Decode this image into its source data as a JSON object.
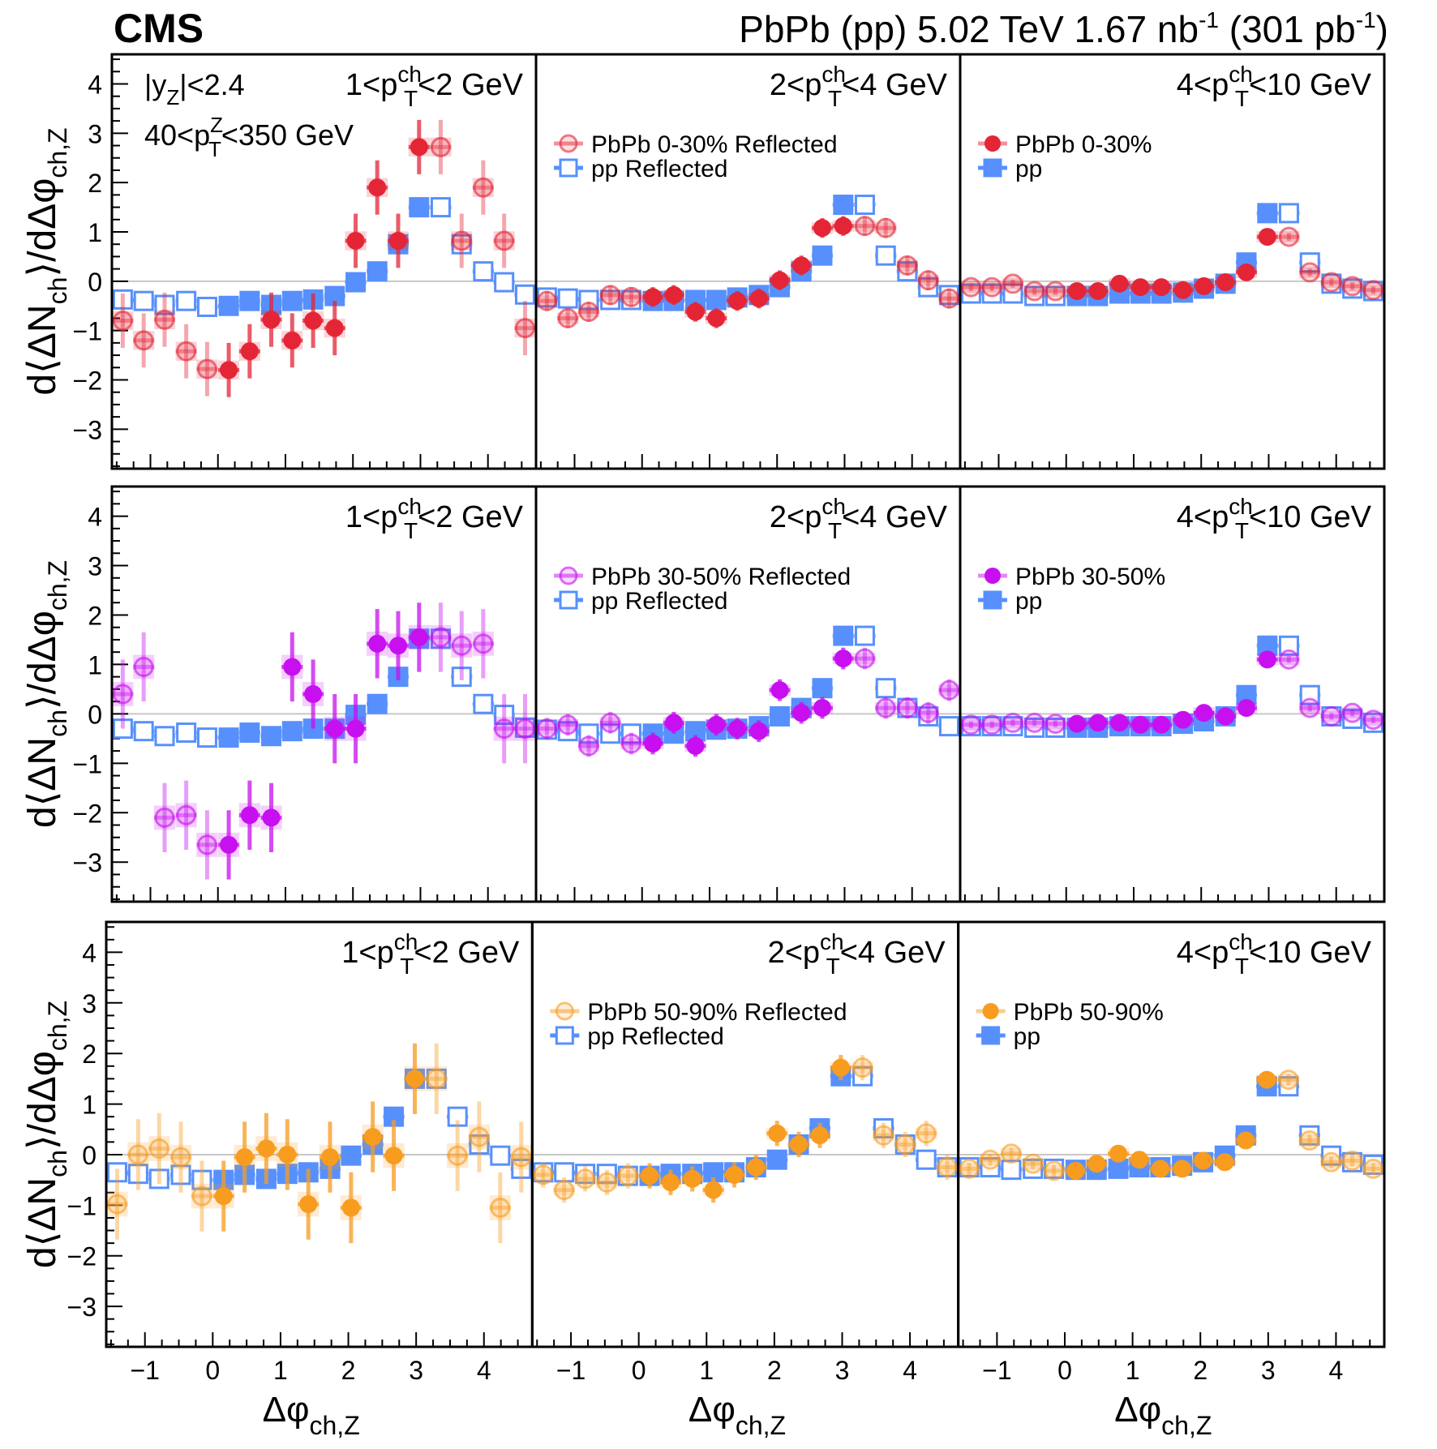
{
  "header": {
    "experiment": "CMS",
    "lumi_main": "PbPb (pp) 5.02 TeV 1.67 nb",
    "lumi_sup1": "-1",
    "lumi_mid": " (301 pb",
    "lumi_sup2": "-1",
    "lumi_end": ")"
  },
  "annotations": {
    "rapidity_cut": {
      "main": "|y",
      "sub": "Z",
      "end": "|<2.4"
    },
    "zpt_cut": {
      "pre": "40<p",
      "sup": "Z",
      "sub": "T",
      "post": "<350 GeV"
    }
  },
  "axis_labels": {
    "x": {
      "main": "Δφ",
      "sub": "ch,Z"
    },
    "y": {
      "pre": "d⟨ΔN",
      "sub1": "ch",
      "mid": "⟩/dΔφ",
      "sub2": "ch,Z"
    }
  },
  "colors": {
    "pp": "#5790fc",
    "pbpb_0_30": "#e42536",
    "pbpb_30_50": "#c80ff0",
    "pbpb_50_90": "#f89c20"
  },
  "chart_data": {
    "type": "scatter",
    "title": "CMS PbPb (pp) 5.02 TeV 1.67 nb^-1 (301 pb^-1)",
    "xlabel": "Δφ_ch,Z",
    "ylabel": "d⟨ΔN_ch⟩/dΔφ_ch,Z",
    "xlim": [
      -1.5708,
      4.7124
    ],
    "ylim": [
      -3.8,
      4.6
    ],
    "xticks": [
      -1,
      0,
      1,
      2,
      3,
      4
    ],
    "yticks": [
      -3,
      -2,
      -1,
      0,
      1,
      2,
      3,
      4
    ],
    "grid": false,
    "x": [
      -1.41,
      -1.1,
      -0.79,
      -0.47,
      -0.16,
      0.16,
      0.47,
      0.79,
      1.1,
      1.41,
      1.73,
      2.04,
      2.36,
      2.67,
      2.98,
      3.3,
      3.61,
      3.93,
      4.24,
      4.55
    ],
    "filled_range": [
      0,
      3.1416
    ],
    "pt_bins": [
      {
        "pre": "1<p",
        "sup": "ch",
        "sub": "T",
        "post": "<2 GeV"
      },
      {
        "pre": "2<p",
        "sup": "ch",
        "sub": "T",
        "post": "<4 GeV"
      },
      {
        "pre": "4<p",
        "sup": "ch",
        "sub": "T",
        "post": "<10 GeV"
      }
    ],
    "rows": [
      {
        "centrality": "0-30%",
        "color_key": "pbpb_0_30",
        "legend_reflected": [
          "PbPb 0-30% Reflected",
          "pp Reflected"
        ],
        "legend_direct": [
          "PbPb 0-30%",
          "pp"
        ],
        "panels": [
          {
            "pbpb": [
              -0.8,
              -1.2,
              -0.78,
              -1.42,
              -1.78,
              -1.8,
              -1.42,
              -0.78,
              -1.2,
              -0.8,
              -0.95,
              0.82,
              1.9,
              0.82,
              2.72,
              2.72,
              0.82,
              1.9,
              0.82,
              -0.95
            ],
            "pbpb_err": [
              0.55,
              0.55,
              0.55,
              0.55,
              0.55,
              0.55,
              0.55,
              0.55,
              0.55,
              0.55,
              0.55,
              0.55,
              0.55,
              0.55,
              0.55,
              0.55,
              0.55,
              0.55,
              0.55,
              0.55
            ],
            "pp": [
              -0.37,
              -0.4,
              -0.48,
              -0.4,
              -0.52,
              -0.5,
              -0.4,
              -0.48,
              -0.4,
              -0.37,
              -0.3,
              -0.02,
              0.2,
              0.75,
              1.5,
              1.5,
              0.75,
              0.2,
              -0.02,
              -0.27
            ]
          },
          {
            "pbpb": [
              -0.4,
              -0.75,
              -0.62,
              -0.28,
              -0.32,
              -0.32,
              -0.28,
              -0.62,
              -0.75,
              -0.4,
              -0.35,
              0.02,
              0.32,
              1.08,
              1.12,
              1.12,
              1.08,
              0.32,
              0.02,
              -0.35
            ],
            "pbpb_err": [
              0.2,
              0.2,
              0.2,
              0.2,
              0.2,
              0.2,
              0.2,
              0.2,
              0.2,
              0.2,
              0.2,
              0.2,
              0.2,
              0.2,
              0.2,
              0.2,
              0.2,
              0.2,
              0.2,
              0.2
            ],
            "pp": [
              -0.33,
              -0.35,
              -0.38,
              -0.38,
              -0.38,
              -0.4,
              -0.4,
              -0.38,
              -0.38,
              -0.33,
              -0.28,
              -0.12,
              0.2,
              0.52,
              1.55,
              1.55,
              0.52,
              0.2,
              -0.12,
              -0.28
            ]
          },
          {
            "pbpb": [
              -0.12,
              -0.12,
              -0.05,
              -0.2,
              -0.2,
              -0.2,
              -0.2,
              -0.05,
              -0.12,
              -0.12,
              -0.18,
              -0.1,
              -0.02,
              0.18,
              0.9,
              0.9,
              0.18,
              -0.02,
              -0.1,
              -0.18
            ],
            "pbpb_err": [
              0.08,
              0.08,
              0.08,
              0.08,
              0.08,
              0.08,
              0.08,
              0.08,
              0.08,
              0.08,
              0.08,
              0.08,
              0.08,
              0.08,
              0.08,
              0.08,
              0.08,
              0.08,
              0.08,
              0.08
            ],
            "pp": [
              -0.25,
              -0.25,
              -0.25,
              -0.3,
              -0.3,
              -0.3,
              -0.3,
              -0.25,
              -0.25,
              -0.25,
              -0.23,
              -0.15,
              -0.05,
              0.38,
              1.38,
              1.38,
              0.38,
              -0.05,
              -0.15,
              -0.2
            ]
          }
        ]
      },
      {
        "centrality": "30-50%",
        "color_key": "pbpb_30_50",
        "legend_reflected": [
          "PbPb 30-50% Reflected",
          "pp Reflected"
        ],
        "legend_direct": [
          "PbPb 30-50%",
          "pp"
        ],
        "panels": [
          {
            "pbpb": [
              0.4,
              0.95,
              -2.1,
              -2.05,
              -2.65,
              -2.65,
              -2.05,
              -2.1,
              0.95,
              0.4,
              -0.3,
              -0.3,
              1.42,
              1.38,
              1.55,
              1.55,
              1.38,
              1.42,
              -0.3,
              -0.3
            ],
            "pbpb_err": [
              0.7,
              0.7,
              0.7,
              0.7,
              0.7,
              0.7,
              0.7,
              0.7,
              0.7,
              0.7,
              0.7,
              0.7,
              0.7,
              0.7,
              0.7,
              0.7,
              0.7,
              0.7,
              0.7,
              0.7
            ],
            "pp": [
              -0.3,
              -0.35,
              -0.45,
              -0.38,
              -0.48,
              -0.48,
              -0.38,
              -0.45,
              -0.35,
              -0.3,
              -0.3,
              -0.02,
              0.2,
              0.75,
              1.52,
              1.52,
              0.75,
              0.2,
              -0.02,
              -0.28
            ]
          },
          {
            "pbpb": [
              -0.3,
              -0.22,
              -0.65,
              -0.18,
              -0.6,
              -0.6,
              -0.18,
              -0.65,
              -0.22,
              -0.3,
              -0.35,
              0.48,
              0.02,
              0.12,
              1.12,
              1.12,
              0.12,
              0.12,
              0.02,
              0.48
            ],
            "pbpb_err": [
              0.22,
              0.22,
              0.22,
              0.22,
              0.22,
              0.22,
              0.22,
              0.22,
              0.22,
              0.22,
              0.22,
              0.22,
              0.22,
              0.22,
              0.22,
              0.22,
              0.22,
              0.22,
              0.22,
              0.22
            ],
            "pp": [
              -0.32,
              -0.35,
              -0.4,
              -0.4,
              -0.4,
              -0.4,
              -0.4,
              -0.35,
              -0.32,
              -0.3,
              -0.25,
              -0.05,
              0.12,
              0.52,
              1.58,
              1.58,
              0.52,
              0.12,
              -0.05,
              -0.25
            ]
          },
          {
            "pbpb": [
              -0.22,
              -0.22,
              -0.18,
              -0.18,
              -0.2,
              -0.2,
              -0.18,
              -0.18,
              -0.22,
              -0.22,
              -0.12,
              0.02,
              -0.05,
              0.12,
              1.1,
              1.1,
              0.12,
              -0.05,
              0.02,
              -0.12
            ],
            "pbpb_err": [
              0.07,
              0.07,
              0.07,
              0.07,
              0.07,
              0.07,
              0.07,
              0.07,
              0.07,
              0.07,
              0.07,
              0.07,
              0.07,
              0.07,
              0.07,
              0.07,
              0.07,
              0.07,
              0.07,
              0.07
            ],
            "pp": [
              -0.25,
              -0.25,
              -0.25,
              -0.28,
              -0.28,
              -0.28,
              -0.28,
              -0.25,
              -0.25,
              -0.25,
              -0.2,
              -0.15,
              -0.05,
              0.38,
              1.38,
              1.38,
              0.38,
              -0.05,
              -0.1,
              -0.18
            ]
          }
        ]
      },
      {
        "centrality": "50-90%",
        "color_key": "pbpb_50_90",
        "legend_reflected": [
          "PbPb 50-90% Reflected",
          "pp Reflected"
        ],
        "legend_direct": [
          "PbPb 50-90%",
          "pp"
        ],
        "panels": [
          {
            "pbpb": [
              -0.98,
              0.0,
              0.12,
              -0.05,
              -0.82,
              -0.82,
              -0.05,
              0.12,
              0.0,
              -0.98,
              -0.05,
              -1.05,
              0.35,
              -0.02,
              1.5,
              1.5,
              -0.02,
              0.35,
              -1.05,
              -0.05
            ],
            "pbpb_err": [
              0.7,
              0.7,
              0.7,
              0.7,
              0.7,
              0.7,
              0.7,
              0.7,
              0.7,
              0.7,
              0.7,
              0.7,
              0.7,
              0.7,
              0.7,
              0.7,
              0.7,
              0.7,
              0.7,
              0.7
            ],
            "pp": [
              -0.35,
              -0.38,
              -0.48,
              -0.4,
              -0.5,
              -0.5,
              -0.4,
              -0.48,
              -0.38,
              -0.35,
              -0.28,
              -0.02,
              0.2,
              0.75,
              1.5,
              1.5,
              0.75,
              0.2,
              -0.02,
              -0.28
            ]
          },
          {
            "pbpb": [
              -0.4,
              -0.7,
              -0.48,
              -0.55,
              -0.42,
              -0.42,
              -0.55,
              -0.48,
              -0.7,
              -0.4,
              -0.25,
              0.42,
              0.2,
              0.38,
              1.72,
              1.72,
              0.38,
              0.2,
              0.42,
              -0.25
            ],
            "pbpb_err": [
              0.25,
              0.25,
              0.25,
              0.25,
              0.25,
              0.25,
              0.25,
              0.25,
              0.25,
              0.25,
              0.25,
              0.25,
              0.25,
              0.25,
              0.25,
              0.25,
              0.25,
              0.25,
              0.25,
              0.25
            ],
            "pp": [
              -0.35,
              -0.35,
              -0.38,
              -0.38,
              -0.42,
              -0.42,
              -0.38,
              -0.38,
              -0.35,
              -0.35,
              -0.25,
              -0.1,
              0.2,
              0.52,
              1.55,
              1.55,
              0.52,
              0.2,
              -0.1,
              -0.25
            ]
          },
          {
            "pbpb": [
              -0.28,
              -0.1,
              0.02,
              -0.18,
              -0.32,
              -0.32,
              -0.18,
              0.02,
              -0.1,
              -0.28,
              -0.28,
              -0.12,
              -0.15,
              0.28,
              1.48,
              1.48,
              0.28,
              -0.15,
              -0.12,
              -0.28
            ],
            "pbpb_err": [
              0.12,
              0.12,
              0.12,
              0.12,
              0.12,
              0.12,
              0.12,
              0.12,
              0.12,
              0.12,
              0.12,
              0.12,
              0.12,
              0.12,
              0.12,
              0.12,
              0.12,
              0.12,
              0.12,
              0.12
            ],
            "pp": [
              -0.25,
              -0.25,
              -0.3,
              -0.28,
              -0.28,
              -0.3,
              -0.3,
              -0.28,
              -0.25,
              -0.25,
              -0.22,
              -0.15,
              -0.02,
              0.38,
              1.35,
              1.35,
              0.38,
              -0.02,
              -0.15,
              -0.2
            ]
          }
        ]
      }
    ]
  }
}
